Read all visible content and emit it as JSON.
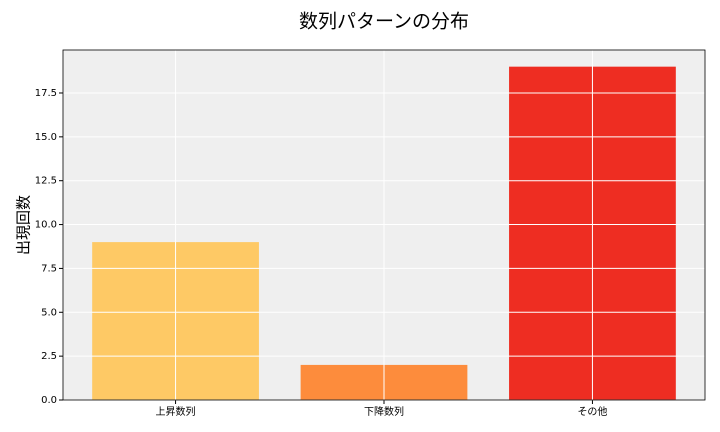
{
  "chart_data": {
    "type": "bar",
    "title": "数列パターンの分布",
    "ylabel": "出現回数",
    "categories": [
      "上昇数列",
      "下降数列",
      "その他"
    ],
    "values": [
      9,
      2,
      19
    ],
    "colors": [
      "#fec965",
      "#fd8c3c",
      "#ee2d22"
    ],
    "ylim": [
      0,
      19.95
    ],
    "yticks": [
      {
        "value": 0,
        "label": "0.0"
      },
      {
        "value": 2.5,
        "label": "2.5"
      },
      {
        "value": 5,
        "label": "5.0"
      },
      {
        "value": 7.5,
        "label": "7.5"
      },
      {
        "value": 10,
        "label": "10.0"
      },
      {
        "value": 12.5,
        "label": "12.5"
      },
      {
        "value": 15,
        "label": "15.0"
      },
      {
        "value": 17.5,
        "label": "17.5"
      }
    ],
    "grid": true
  }
}
